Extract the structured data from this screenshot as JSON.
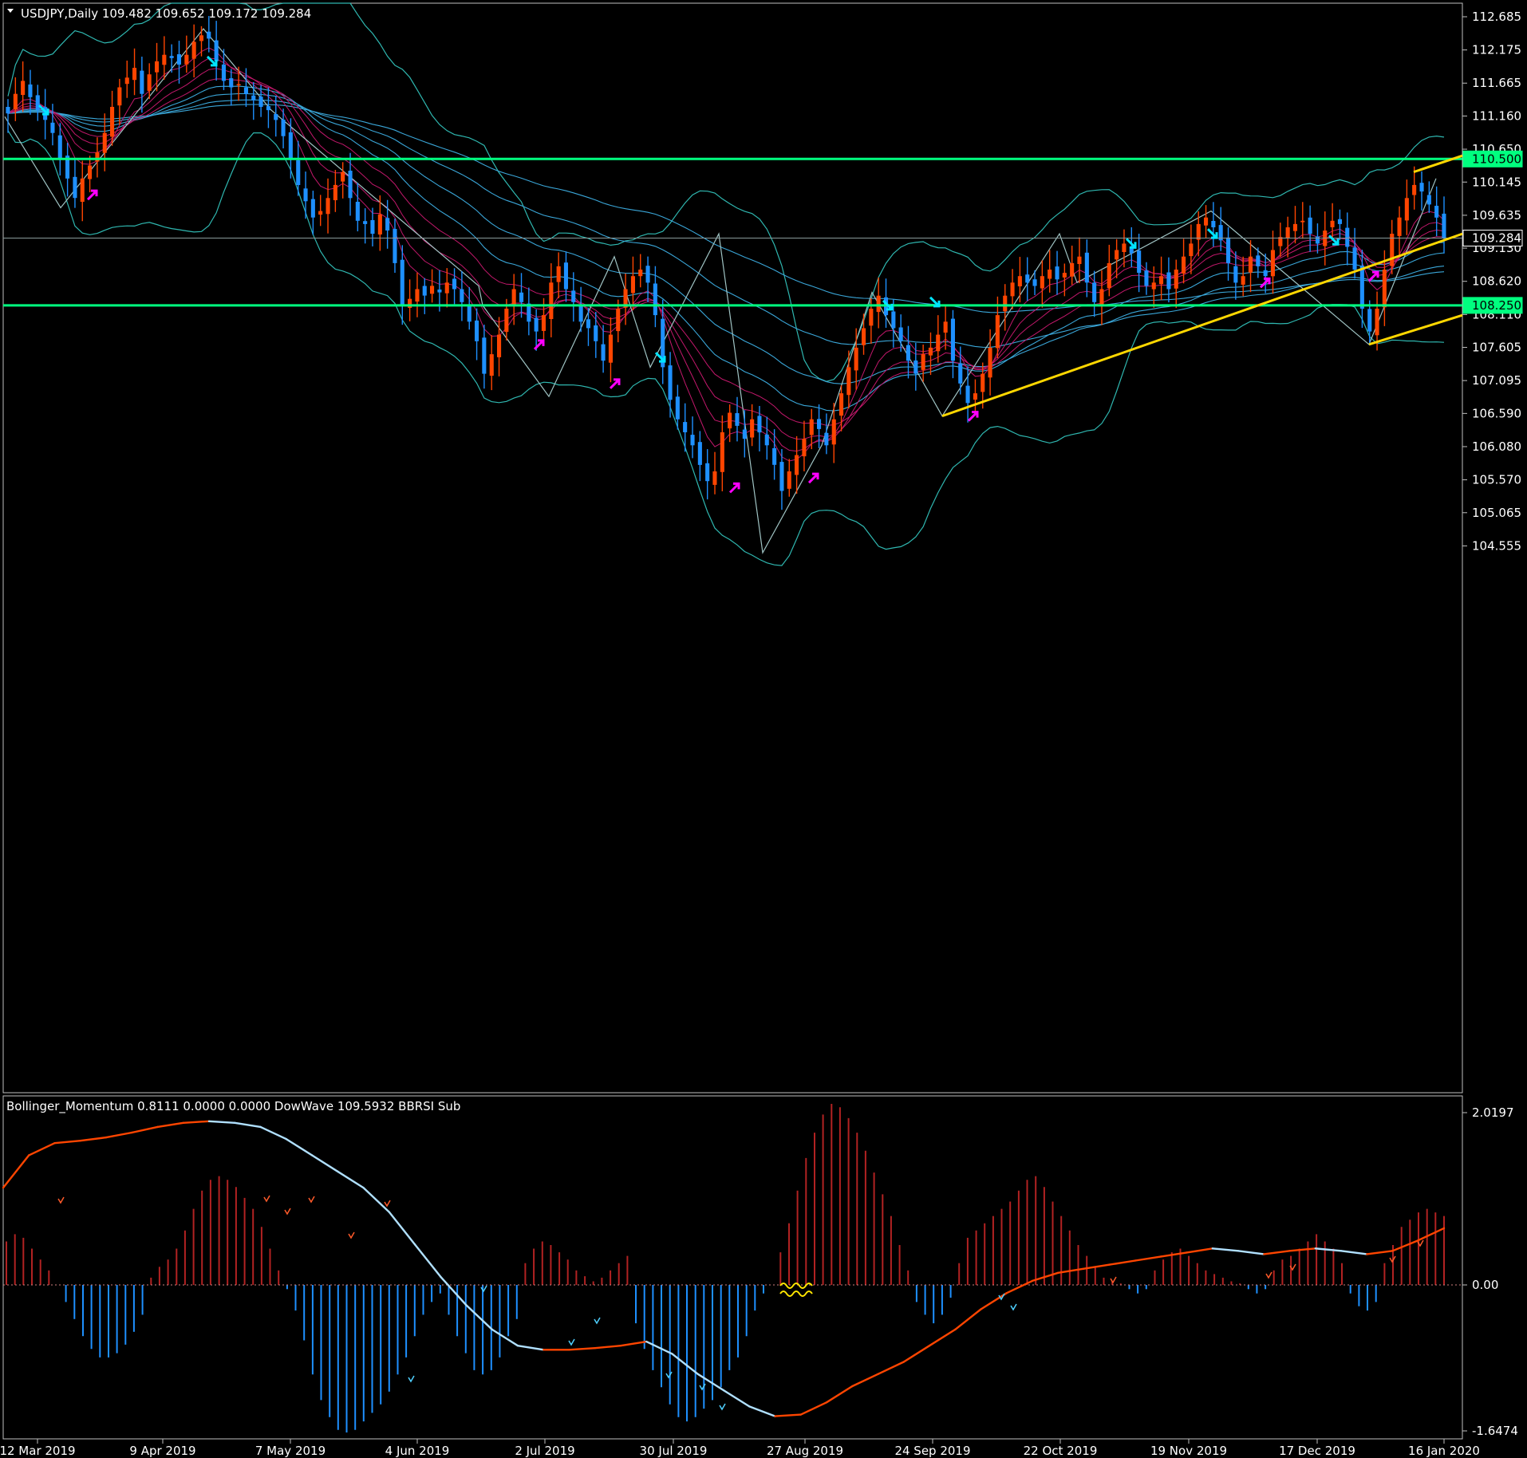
{
  "window": {
    "symbol_header": "USDJPY,Daily  109.482 109.652 109.172 109.284",
    "indicator_header": "Bollinger_Momentum 0.8111 0.0000 0.0000  DowWave 109.5932  BBRSI Sub"
  },
  "colors": {
    "background": "#000000",
    "frame": "#c0c0c0",
    "bull_candle": "#ff4500",
    "bear_candle": "#1e90ff",
    "level_line": "#00ff7f",
    "trend_line": "#ffd700",
    "bollinger": "#2fb7b0",
    "ma_cyan": "#3aa6d8",
    "ma_magenta": "#c2186b",
    "zigzag": "#a0c4c4",
    "hist_pos": "#b22222",
    "hist_neg": "#1e90ff",
    "momentum_up": "#ff4500",
    "momentum_down": "#b0e0ff",
    "arrow_up": "#ff00ff",
    "arrow_down": "#00e5ff"
  },
  "chart_data": [
    {
      "type": "candlestick",
      "symbol": "USDJPY",
      "timeframe": "Daily",
      "last_ohlc": {
        "open": 109.482,
        "high": 109.652,
        "low": 109.172,
        "close": 109.284
      },
      "ylim": [
        104.1,
        112.9
      ],
      "y_ticks": [
        "112.685",
        "112.175",
        "111.665",
        "111.160",
        "110.650",
        "110.145",
        "109.635",
        "109.130",
        "108.620",
        "108.110",
        "107.605",
        "107.095",
        "106.590",
        "106.080",
        "105.570",
        "105.065",
        "104.555"
      ],
      "x_tick_labels": [
        "12 Mar 2019",
        "9 Apr 2019",
        "7 May 2019",
        "4 Jun 2019",
        "2 Jul 2019",
        "30 Jul 2019",
        "27 Aug 2019",
        "24 Sep 2019",
        "22 Oct 2019",
        "19 Nov 2019",
        "17 Dec 2019",
        "16 Jan 2020"
      ],
      "price_tags": [
        {
          "label": "110.500",
          "value": 110.5,
          "style": "level"
        },
        {
          "label": "108.250",
          "value": 108.25,
          "style": "level"
        },
        {
          "label": "109.284",
          "value": 109.284,
          "style": "current"
        }
      ],
      "horizontal_levels": [
        110.5,
        108.25
      ],
      "trend_lines": [
        {
          "from": [
            1181,
            106.55
          ],
          "to": [
            1833,
            109.35
          ]
        },
        {
          "from": [
            1716,
            107.65
          ],
          "to": [
            1833,
            108.1
          ]
        },
        {
          "from": [
            1772,
            110.3
          ],
          "to": [
            1833,
            110.55
          ]
        }
      ],
      "zigzag": [
        [
          6,
          111.15
        ],
        [
          76,
          109.75
        ],
        [
          255,
          112.5
        ],
        [
          340,
          111.25
        ],
        [
          600,
          108.55
        ],
        [
          605,
          108.25
        ],
        [
          688,
          106.85
        ],
        [
          770,
          109.0
        ],
        [
          815,
          107.3
        ],
        [
          901,
          109.35
        ],
        [
          956,
          104.45
        ],
        [
          1030,
          106.1
        ],
        [
          1093,
          108.45
        ],
        [
          1181,
          106.55
        ],
        [
          1328,
          109.35
        ],
        [
          1350,
          108.6
        ],
        [
          1518,
          109.7
        ],
        [
          1716,
          107.65
        ],
        [
          1800,
          110.2
        ]
      ],
      "closes": [
        111.2,
        111.5,
        111.7,
        111.45,
        111.25,
        111.1,
        110.9,
        110.5,
        110.2,
        109.9,
        110.2,
        110.4,
        110.6,
        110.9,
        111.3,
        111.6,
        111.75,
        111.9,
        111.5,
        111.8,
        112.0,
        112.1,
        112.05,
        111.95,
        112.1,
        112.3,
        112.4,
        112.35,
        112.0,
        111.7,
        111.6,
        111.65,
        111.5,
        111.4,
        111.3,
        111.25,
        111.1,
        110.85,
        110.5,
        110.1,
        109.85,
        109.6,
        109.7,
        109.9,
        110.1,
        110.3,
        109.9,
        109.55,
        109.5,
        109.35,
        109.65,
        109.4,
        108.9,
        108.25,
        108.35,
        108.5,
        108.4,
        108.55,
        108.45,
        108.6,
        108.5,
        108.3,
        108.0,
        107.7,
        107.2,
        107.5,
        107.8,
        108.2,
        108.5,
        108.3,
        108.0,
        107.85,
        108.1,
        108.6,
        108.85,
        108.5,
        108.3,
        108.0,
        107.9,
        107.7,
        107.4,
        107.8,
        108.2,
        108.5,
        108.7,
        108.8,
        108.6,
        108.1,
        107.3,
        106.8,
        106.5,
        106.3,
        106.1,
        105.8,
        105.55,
        105.7,
        106.3,
        106.6,
        106.4,
        106.2,
        106.5,
        106.3,
        106.1,
        105.8,
        105.4,
        105.7,
        105.95,
        106.2,
        106.5,
        106.35,
        106.1,
        106.5,
        106.9,
        107.3,
        107.6,
        107.9,
        108.2,
        108.4,
        108.1,
        107.9,
        107.7,
        107.4,
        107.2,
        107.5,
        107.6,
        107.8,
        108.0,
        107.4,
        107.05,
        106.75,
        106.9,
        107.2,
        107.6,
        108.1,
        108.4,
        108.6,
        108.7,
        108.6,
        108.55,
        108.7,
        108.8,
        108.65,
        108.75,
        108.9,
        109.0,
        108.6,
        108.3,
        108.5,
        108.9,
        109.1,
        109.2,
        109.05,
        108.75,
        108.55,
        108.6,
        108.7,
        108.5,
        108.8,
        109.0,
        109.2,
        109.5,
        109.6,
        109.45,
        109.25,
        108.9,
        108.6,
        108.7,
        109.0,
        108.85,
        108.7,
        109.1,
        109.3,
        109.45,
        109.5,
        109.55,
        109.35,
        109.2,
        109.4,
        109.55,
        109.5,
        109.15,
        108.8,
        108.2,
        107.85,
        108.2,
        108.8,
        109.35,
        109.6,
        109.9,
        110.1,
        110.0,
        109.8,
        109.6,
        109.284
      ]
    },
    {
      "type": "bar",
      "name": "Bollinger_Momentum",
      "readout": [
        0.8111,
        0.0,
        0.0
      ],
      "ylim": [
        -1.6474,
        2.0197
      ],
      "y_ticks": [
        "2.0197",
        "0.00",
        "-1.6474"
      ],
      "histogram": [
        0.6,
        0.7,
        0.65,
        0.5,
        0.35,
        0.2,
        0.0,
        -0.2,
        -0.4,
        -0.6,
        -0.75,
        -0.85,
        -0.85,
        -0.8,
        -0.7,
        -0.55,
        -0.35,
        0.1,
        0.25,
        0.35,
        0.5,
        0.75,
        1.05,
        1.3,
        1.45,
        1.5,
        1.45,
        1.35,
        1.2,
        1.05,
        0.8,
        0.5,
        0.2,
        -0.05,
        -0.3,
        -0.65,
        -1.05,
        -1.35,
        -1.55,
        -1.7,
        -1.75,
        -1.7,
        -1.6,
        -1.5,
        -1.4,
        -1.25,
        -1.05,
        -0.85,
        -0.6,
        -0.35,
        -0.2,
        -0.1,
        -0.35,
        -0.6,
        -0.8,
        -1.0,
        -1.05,
        -1.0,
        -0.85,
        -0.6,
        -0.4,
        0.3,
        0.5,
        0.6,
        0.55,
        0.45,
        0.35,
        0.2,
        0.12,
        0.05,
        0.1,
        0.2,
        0.3,
        0.4,
        -0.45,
        -0.75,
        -1.0,
        -1.2,
        -1.4,
        -1.55,
        -1.6,
        -1.55,
        -1.45,
        -1.35,
        -1.2,
        -1.0,
        -0.85,
        -0.6,
        -0.3,
        -0.1,
        0.0,
        0.45,
        0.85,
        1.3,
        1.75,
        2.1,
        2.35,
        2.5,
        2.45,
        2.3,
        2.1,
        1.85,
        1.55,
        1.25,
        0.95,
        0.55,
        0.2,
        -0.2,
        -0.35,
        -0.45,
        -0.35,
        -0.15,
        0.3,
        0.65,
        0.75,
        0.85,
        0.95,
        1.05,
        1.15,
        1.3,
        1.45,
        1.5,
        1.35,
        1.15,
        0.95,
        0.75,
        0.55,
        0.4,
        0.25,
        0.1,
        0.05,
        0.02,
        -0.05,
        -0.1,
        -0.05,
        0.2,
        0.35,
        0.45,
        0.5,
        0.4,
        0.3,
        0.2,
        0.15,
        0.1,
        0.05,
        0.02,
        -0.05,
        -0.1,
        -0.05,
        0.2,
        0.35,
        0.4,
        0.5,
        0.6,
        0.7,
        0.6,
        0.5,
        0.3,
        -0.1,
        -0.25,
        -0.3,
        -0.2,
        0.3,
        0.55,
        0.8,
        0.9,
        1.0,
        1.05,
        1.0,
        0.95
      ],
      "momentum_line": [
        1.2,
        1.6,
        1.75,
        1.78,
        1.82,
        1.88,
        1.95,
        2.0,
        2.02,
        2.0,
        1.95,
        1.8,
        1.6,
        1.4,
        1.2,
        0.9,
        0.5,
        0.1,
        -0.25,
        -0.55,
        -0.75,
        -0.8,
        -0.8,
        -0.78,
        -0.75,
        -0.7,
        -0.85,
        -1.1,
        -1.3,
        -1.5,
        -1.62,
        -1.6,
        -1.45,
        -1.25,
        -1.1,
        -0.95,
        -0.75,
        -0.55,
        -0.3,
        -0.1,
        0.05,
        0.15,
        0.2,
        0.25,
        0.3,
        0.35,
        0.4,
        0.45,
        0.42,
        0.38,
        0.42,
        0.45,
        0.42,
        0.38,
        0.42,
        0.55,
        0.7
      ]
    }
  ]
}
